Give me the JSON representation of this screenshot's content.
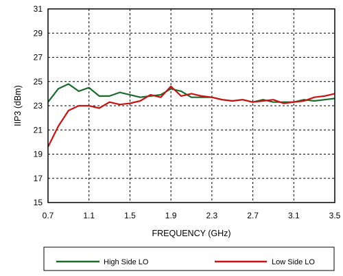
{
  "chart_data": {
    "type": "line",
    "title": "",
    "xlabel": "FREQUENCY (GHz)",
    "ylabel": "IIP3 (dBm)",
    "xlim": [
      0.7,
      3.5
    ],
    "ylim": [
      15,
      31
    ],
    "x_ticks": [
      "0.7",
      "1.1",
      "1.5",
      "1.9",
      "2.3",
      "2.7",
      "3.1",
      "3.5"
    ],
    "y_ticks": [
      "15",
      "17",
      "19",
      "21",
      "23",
      "25",
      "27",
      "29",
      "31"
    ],
    "grid": true,
    "grid_style": "dashed",
    "legend_position": "bottom",
    "x": [
      0.7,
      0.8,
      0.9,
      1.0,
      1.1,
      1.2,
      1.3,
      1.4,
      1.5,
      1.6,
      1.7,
      1.8,
      1.9,
      2.0,
      2.1,
      2.2,
      2.3,
      2.4,
      2.5,
      2.6,
      2.7,
      2.8,
      2.9,
      3.0,
      3.1,
      3.2,
      3.3,
      3.4,
      3.5
    ],
    "series": [
      {
        "name": "High Side LO",
        "color": "#1a6b2a",
        "values": [
          23.3,
          24.4,
          24.8,
          24.2,
          24.5,
          23.8,
          23.8,
          24.1,
          23.9,
          23.7,
          23.8,
          23.9,
          24.4,
          24.2,
          23.7,
          23.7,
          23.7,
          23.5,
          23.4,
          23.5,
          23.3,
          23.5,
          23.3,
          23.3,
          23.3,
          23.5,
          23.4,
          23.5,
          23.6
        ]
      },
      {
        "name": "Low Side LO",
        "color": "#cc1111",
        "values": [
          19.6,
          21.3,
          22.6,
          23.0,
          23.0,
          22.8,
          23.3,
          23.1,
          23.2,
          23.4,
          23.9,
          23.7,
          24.6,
          23.8,
          24.0,
          23.8,
          23.7,
          23.5,
          23.4,
          23.5,
          23.3,
          23.4,
          23.5,
          23.2,
          23.3,
          23.4,
          23.7,
          23.8,
          24.0
        ]
      }
    ]
  }
}
